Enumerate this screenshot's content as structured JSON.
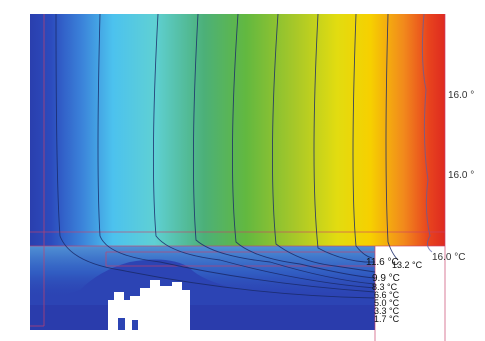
{
  "edge_labels": [
    {
      "text": "16.0 °"
    },
    {
      "text": "16.0 °"
    },
    {
      "text": "16.0 °C"
    }
  ],
  "cluster_labels": [
    {
      "text": "11.6 °C"
    },
    {
      "text": "13.2 °C"
    },
    {
      "text": "9.9 °C"
    },
    {
      "text": "8.3 °C"
    },
    {
      "text": "6.6 °C"
    },
    {
      "text": "5.0 °C"
    },
    {
      "text": "3.3 °C"
    },
    {
      "text": "1.7 °C"
    }
  ],
  "colors": {
    "cold": "#2a3fb0",
    "cyan": "#4ec8ee",
    "green": "#58b84a",
    "yellow": "#f5e000",
    "orange": "#f08020",
    "hot": "#e03020",
    "frame": "#d04060"
  }
}
